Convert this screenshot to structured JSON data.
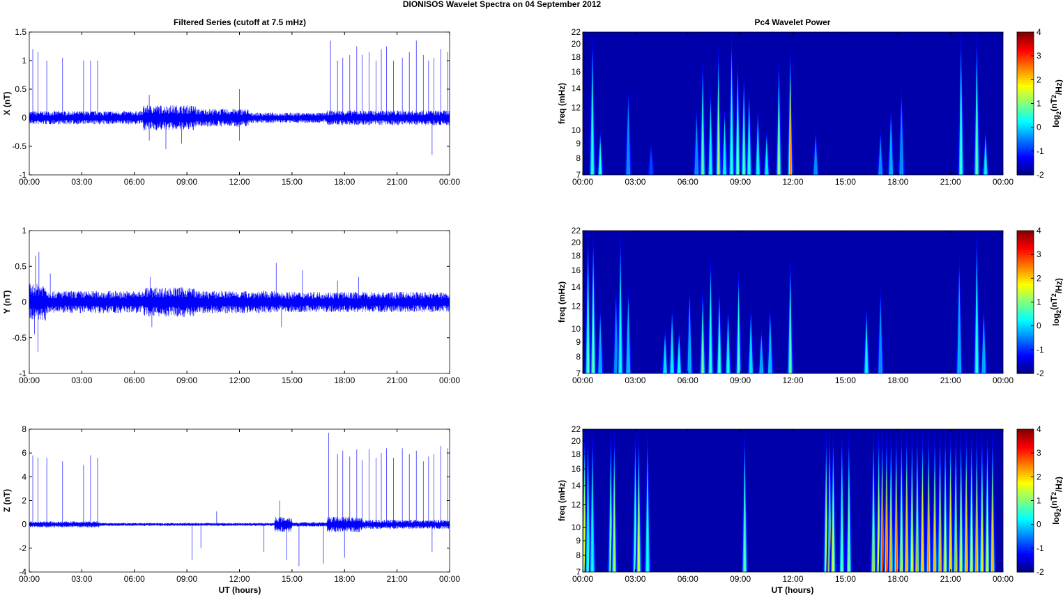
{
  "chart_data": {
    "title": "DIONISOS Wavelet Spectra on 04 September 2012",
    "left_title": "Filtered Series (cutoff at 7.5 mHz)",
    "right_title": "Pc4 Wavelet Power",
    "xlabel": "UT (hours)",
    "xticks": [
      "00:00",
      "03:00",
      "06:00",
      "09:00",
      "12:00",
      "15:00",
      "18:00",
      "21:00",
      "00:00"
    ],
    "xlim": [
      0,
      24
    ],
    "series_color": "#0000ff",
    "time_series": [
      {
        "type": "line",
        "ylabel": "X (nT)",
        "ylim": [
          -1,
          1.5
        ],
        "yticks": [
          -1,
          -0.5,
          0,
          0.5,
          1,
          1.5
        ],
        "noise": [
          [
            0,
            6.5,
            0.09
          ],
          [
            6.5,
            9.5,
            0.17
          ],
          [
            9.5,
            12.5,
            0.12
          ],
          [
            12.5,
            17,
            0.07
          ],
          [
            17,
            24,
            0.1
          ]
        ],
        "spikes": [
          [
            0.2,
            1.2
          ],
          [
            0.5,
            1.15
          ],
          [
            1.0,
            1.0
          ],
          [
            1.9,
            1.05
          ],
          [
            3.1,
            1.0
          ],
          [
            3.5,
            1.0
          ],
          [
            3.9,
            1.0
          ],
          [
            6.85,
            0.4
          ],
          [
            6.85,
            -0.4
          ],
          [
            7.8,
            -0.55
          ],
          [
            8.7,
            -0.45
          ],
          [
            12.0,
            0.5
          ],
          [
            12.0,
            -0.4
          ],
          [
            17.2,
            1.35
          ],
          [
            17.6,
            1.0
          ],
          [
            17.9,
            1.05
          ],
          [
            18.3,
            1.1
          ],
          [
            18.7,
            1.25
          ],
          [
            19.0,
            1.1
          ],
          [
            19.4,
            1.15
          ],
          [
            19.8,
            1.0
          ],
          [
            20.1,
            1.2
          ],
          [
            20.4,
            1.25
          ],
          [
            20.8,
            1.0
          ],
          [
            21.3,
            1.05
          ],
          [
            21.7,
            1.15
          ],
          [
            22.1,
            1.35
          ],
          [
            22.5,
            1.1
          ],
          [
            22.8,
            1.0
          ],
          [
            23.0,
            -0.65
          ],
          [
            23.1,
            1.05
          ],
          [
            23.5,
            1.2
          ],
          [
            23.9,
            1.15
          ]
        ]
      },
      {
        "type": "line",
        "ylabel": "Y (nT)",
        "ylim": [
          -1,
          1
        ],
        "yticks": [
          -1,
          -0.5,
          0,
          0.5,
          1
        ],
        "noise": [
          [
            0,
            1,
            0.2
          ],
          [
            1,
            6.5,
            0.12
          ],
          [
            6.5,
            9.5,
            0.16
          ],
          [
            9.5,
            14,
            0.12
          ],
          [
            14,
            24,
            0.11
          ]
        ],
        "spikes": [
          [
            0.35,
            0.65
          ],
          [
            0.55,
            0.7
          ],
          [
            0.5,
            -0.7
          ],
          [
            0.3,
            -0.45
          ],
          [
            1.2,
            0.4
          ],
          [
            6.9,
            0.35
          ],
          [
            7.0,
            -0.35
          ],
          [
            14.1,
            0.55
          ],
          [
            15.6,
            0.45
          ],
          [
            14.4,
            -0.35
          ],
          [
            17.6,
            0.3
          ],
          [
            18.8,
            0.35
          ]
        ]
      },
      {
        "type": "line",
        "ylabel": "Z (nT)",
        "ylim": [
          -4,
          8
        ],
        "yticks": [
          -4,
          -2,
          0,
          2,
          4,
          6,
          8
        ],
        "noise": [
          [
            0,
            4,
            0.2
          ],
          [
            4,
            14,
            0.1
          ],
          [
            14,
            15,
            0.5
          ],
          [
            15,
            17,
            0.15
          ],
          [
            17,
            19,
            0.5
          ],
          [
            19,
            24,
            0.3
          ]
        ],
        "spikes": [
          [
            0.2,
            5.8
          ],
          [
            0.5,
            5.6
          ],
          [
            1.0,
            5.6
          ],
          [
            1.9,
            5.3
          ],
          [
            3.1,
            5.0
          ],
          [
            3.5,
            5.8
          ],
          [
            3.9,
            5.6
          ],
          [
            9.3,
            -3.0
          ],
          [
            9.8,
            -2.0
          ],
          [
            10.7,
            1.1
          ],
          [
            13.4,
            -2.3
          ],
          [
            14.3,
            2.0
          ],
          [
            14.7,
            -3.0
          ],
          [
            15.4,
            -3.5
          ],
          [
            16.8,
            -3.3
          ],
          [
            17.1,
            7.7
          ],
          [
            17.6,
            5.9
          ],
          [
            17.9,
            6.2
          ],
          [
            18.0,
            -2.8
          ],
          [
            18.3,
            5.7
          ],
          [
            18.7,
            6.3
          ],
          [
            19.0,
            5.4
          ],
          [
            19.4,
            6.3
          ],
          [
            19.8,
            5.6
          ],
          [
            20.1,
            6.0
          ],
          [
            20.4,
            6.4
          ],
          [
            20.8,
            5.6
          ],
          [
            21.3,
            6.4
          ],
          [
            21.7,
            5.9
          ],
          [
            22.1,
            6.2
          ],
          [
            22.5,
            5.3
          ],
          [
            22.8,
            5.7
          ],
          [
            23.1,
            5.9
          ],
          [
            23.5,
            6.6
          ],
          [
            23.9,
            6.4
          ],
          [
            23.0,
            -2.3
          ]
        ]
      }
    ],
    "wavelets": [
      {
        "type": "heatmap",
        "ylabel": "freq (mHz)",
        "ylim": [
          7,
          22
        ],
        "yticks": [
          7,
          8,
          9,
          10,
          12,
          14,
          16,
          18,
          20,
          22
        ],
        "events": [
          [
            0.55,
            22,
            0.5
          ],
          [
            1.0,
            10,
            0.5
          ],
          [
            2.6,
            14,
            -0.5
          ],
          [
            3.9,
            9,
            -1
          ],
          [
            6.5,
            12,
            -0.5
          ],
          [
            6.85,
            18,
            0.8
          ],
          [
            7.3,
            14,
            0.3
          ],
          [
            7.75,
            20,
            1.2
          ],
          [
            8.1,
            12,
            0.2
          ],
          [
            8.5,
            22,
            0.5
          ],
          [
            8.85,
            18,
            1.0
          ],
          [
            9.2,
            16,
            0.8
          ],
          [
            9.5,
            14,
            0.5
          ],
          [
            10.0,
            12,
            0.3
          ],
          [
            10.5,
            10,
            0.2
          ],
          [
            11.2,
            18,
            1.2
          ],
          [
            11.85,
            20,
            2.8
          ],
          [
            13.3,
            10,
            -0.5
          ],
          [
            17.0,
            10,
            -0.5
          ],
          [
            17.6,
            12,
            -0.3
          ],
          [
            18.2,
            14,
            -0.5
          ],
          [
            21.6,
            22,
            0.6
          ],
          [
            22.5,
            22,
            0.8
          ],
          [
            23.0,
            10,
            0.2
          ]
        ]
      },
      {
        "type": "heatmap",
        "ylabel": "freq (mHz)",
        "ylim": [
          7,
          22
        ],
        "yticks": [
          7,
          8,
          9,
          10,
          12,
          14,
          16,
          18,
          20,
          22
        ],
        "events": [
          [
            0.3,
            22,
            0.8
          ],
          [
            0.6,
            22,
            1.0
          ],
          [
            1.0,
            12,
            -0.3
          ],
          [
            1.9,
            14,
            -0.5
          ],
          [
            2.15,
            22,
            0.3
          ],
          [
            2.6,
            14,
            -0.2
          ],
          [
            4.7,
            10,
            0.1
          ],
          [
            5.1,
            12,
            0.2
          ],
          [
            5.5,
            10,
            0.3
          ],
          [
            6.1,
            14,
            -0.3
          ],
          [
            6.85,
            14,
            1.0
          ],
          [
            7.3,
            18,
            0.5
          ],
          [
            7.8,
            14,
            0.8
          ],
          [
            8.3,
            12,
            0.4
          ],
          [
            8.9,
            16,
            0.6
          ],
          [
            9.6,
            12,
            0.1
          ],
          [
            10.2,
            10,
            -0.3
          ],
          [
            10.7,
            12,
            -0.2
          ],
          [
            11.85,
            18,
            0.8
          ],
          [
            16.2,
            12,
            0.3
          ],
          [
            17.0,
            14,
            -0.5
          ],
          [
            21.5,
            18,
            -0.3
          ],
          [
            22.5,
            22,
            0.5
          ],
          [
            22.9,
            12,
            -0.3
          ]
        ]
      },
      {
        "type": "heatmap",
        "ylabel": "freq (mHz)",
        "ylim": [
          7,
          22
        ],
        "yticks": [
          7,
          8,
          9,
          10,
          12,
          14,
          16,
          18,
          20,
          22
        ],
        "events": [
          [
            0.1,
            22,
            1.5
          ],
          [
            0.3,
            22,
            0.5
          ],
          [
            0.55,
            22,
            0.3
          ],
          [
            1.6,
            22,
            1.0
          ],
          [
            1.8,
            22,
            1.2
          ],
          [
            3.0,
            22,
            0.8
          ],
          [
            3.2,
            22,
            1.6
          ],
          [
            3.7,
            22,
            0.5
          ],
          [
            9.25,
            22,
            0.8
          ],
          [
            13.9,
            22,
            1.5
          ],
          [
            14.1,
            22,
            3.0
          ],
          [
            14.3,
            22,
            1.8
          ],
          [
            14.8,
            22,
            0.8
          ],
          [
            15.2,
            22,
            1.0
          ],
          [
            16.6,
            22,
            2.2
          ],
          [
            16.9,
            22,
            1.5
          ],
          [
            17.1,
            22,
            3.4
          ],
          [
            17.35,
            22,
            2.8
          ],
          [
            17.6,
            22,
            2.4
          ],
          [
            17.9,
            22,
            3.0
          ],
          [
            18.2,
            22,
            2.0
          ],
          [
            18.5,
            22,
            2.2
          ],
          [
            18.8,
            22,
            1.8
          ],
          [
            19.1,
            22,
            2.4
          ],
          [
            19.4,
            22,
            2.0
          ],
          [
            19.75,
            22,
            2.6
          ],
          [
            20.1,
            22,
            2.2
          ],
          [
            20.4,
            22,
            2.6
          ],
          [
            20.7,
            22,
            1.8
          ],
          [
            21.0,
            22,
            2.0
          ],
          [
            21.3,
            22,
            2.4
          ],
          [
            21.6,
            22,
            1.6
          ],
          [
            21.9,
            22,
            2.2
          ],
          [
            22.2,
            22,
            1.8
          ],
          [
            22.5,
            22,
            2.4
          ],
          [
            22.8,
            22,
            2.0
          ],
          [
            23.1,
            22,
            1.8
          ],
          [
            23.4,
            22,
            2.2
          ]
        ]
      }
    ],
    "colorbar": {
      "label": "log2(nT2/Hz)",
      "range": [
        -2,
        4
      ],
      "ticks": [
        -2,
        -1,
        0,
        1,
        2,
        3,
        4
      ]
    }
  }
}
